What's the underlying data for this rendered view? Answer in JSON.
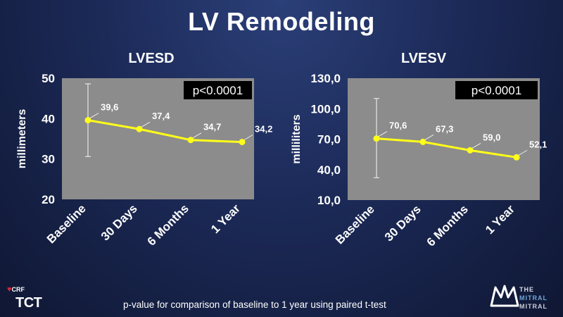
{
  "slide": {
    "title": "LV Remodeling",
    "footnote": "p-value for comparison of baseline to 1 year using paired t-test"
  },
  "logos": {
    "crf": "CRF",
    "tct": "TCT",
    "crown_lines": [
      "THE",
      "MITRAL",
      "MITRAL"
    ]
  },
  "colors": {
    "line": "#ffff1a",
    "plot_bg": "#8c8c8c",
    "errorbar": "#e6e6e6",
    "pbox_bg": "#000000"
  },
  "chart_data": [
    {
      "type": "line",
      "title": "LVESD",
      "ylabel": "millimeters",
      "categories": [
        "Baseline",
        "30 Days",
        "6 Months",
        "1 Year"
      ],
      "values": [
        39.6,
        37.4,
        34.7,
        34.2
      ],
      "value_labels": [
        "39,6",
        "37,4",
        "34,7",
        "34,2"
      ],
      "error_bar": {
        "index": 0,
        "low": 30.6,
        "high": 48.6
      },
      "ylim": [
        20,
        50
      ],
      "yticks": [
        20,
        30,
        40,
        50
      ],
      "ytick_labels": [
        "20",
        "30",
        "40",
        "50"
      ],
      "annotation": "p<0.0001",
      "grid": false
    },
    {
      "type": "line",
      "title": "LVESV",
      "ylabel": "milliliters",
      "categories": [
        "Baseline",
        "30 Days",
        "6 Months",
        "1 Year"
      ],
      "values": [
        70.6,
        67.3,
        59.0,
        52.1
      ],
      "value_labels": [
        "70,6",
        "67,3",
        "59,0",
        "52,1"
      ],
      "error_bar": {
        "index": 0,
        "low": 32.0,
        "high": 110.0
      },
      "ylim": [
        10,
        130
      ],
      "yticks": [
        10,
        40,
        70,
        100,
        130
      ],
      "ytick_labels": [
        "10,0",
        "40,0",
        "70,0",
        "100,0",
        "130,0"
      ],
      "annotation": "p<0.0001",
      "grid": false
    }
  ]
}
